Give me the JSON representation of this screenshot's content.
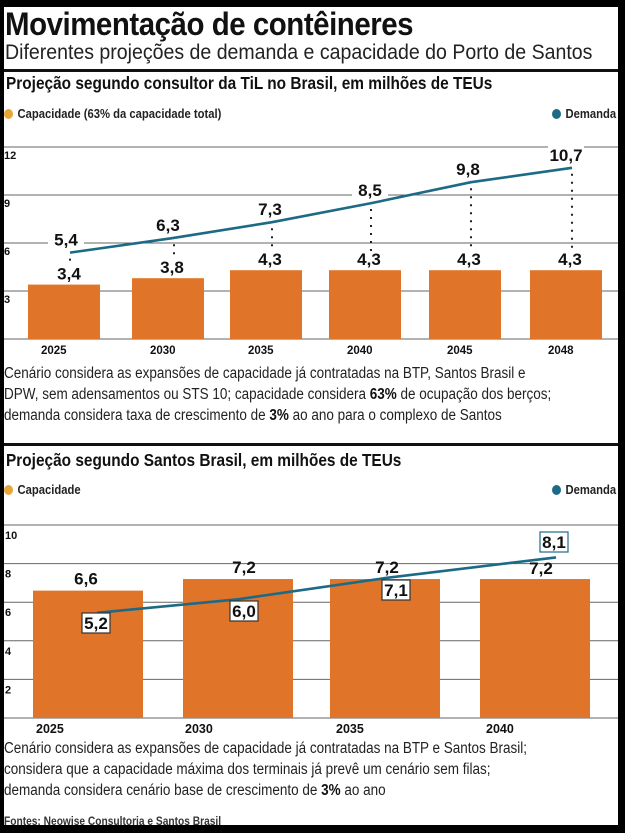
{
  "header": {
    "title": "Movimentação de contêineres",
    "subtitle": "Diferentes projeções de demanda e capacidade do Porto de Santos"
  },
  "colors": {
    "capacity_bar": "#E07428",
    "capacity_legend": "#E9A43A",
    "demand_line": "#1D6A86",
    "grid": "#555555"
  },
  "section1": {
    "title": "Projeção segundo consultor da TiL no Brasil, em milhões de TEUs",
    "legend_capacity": "Capacidade (63% da capacidade total)",
    "legend_demand": "Demanda",
    "note_lines": [
      [
        {
          "t": "Cenário considera as expansões de capacidade já contratadas na BTP, Santos Brasil e"
        }
      ],
      [
        {
          "t": "DPW, sem adensamentos ou STS 10; capacidade considera "
        },
        {
          "t": "63%",
          "b": true
        },
        {
          "t": " de ocupação dos berços;"
        }
      ],
      [
        {
          "t": "demanda considera taxa de crescimento de "
        },
        {
          "t": "3%",
          "b": true
        },
        {
          "t": " ao ano para o complexo de Santos"
        }
      ]
    ]
  },
  "section2": {
    "title": "Projeção segundo Santos Brasil, em milhões de TEUs",
    "legend_capacity": "Capacidade",
    "legend_demand": "Demanda",
    "note_lines": [
      [
        {
          "t": "Cenário considera as expansões de capacidade já contratadas na BTP e Santos Brasil;"
        }
      ],
      [
        {
          "t": "considera que a capacidade máxima dos terminais já prevê um cenário sem filas;"
        }
      ],
      [
        {
          "t": "demanda considera cenário base de crescimento de "
        },
        {
          "t": "3%",
          "b": true
        },
        {
          "t": " ao ano"
        }
      ]
    ]
  },
  "source": "Fontes: Neowise Consultoria e Santos Brasil",
  "chart_data": [
    {
      "type": "bar",
      "title": "Projeção segundo consultor da TiL no Brasil, em milhões de TEUs",
      "categories": [
        "2025",
        "2030",
        "2035",
        "2040",
        "2045",
        "2048"
      ],
      "series": [
        {
          "name": "Capacidade (63% da capacidade total)",
          "type": "bar",
          "values": [
            3.4,
            3.8,
            4.3,
            4.3,
            4.3,
            4.3
          ],
          "labels": [
            "3,4",
            "3,8",
            "4,3",
            "4,3",
            "4,3",
            "4,3"
          ]
        },
        {
          "name": "Demanda",
          "type": "line",
          "values": [
            5.4,
            6.3,
            7.3,
            8.5,
            9.8,
            10.7
          ],
          "labels": [
            "5,4",
            "6,3",
            "7,3",
            "8,5",
            "9,8",
            "10,7"
          ]
        }
      ],
      "yticks": [
        3,
        6,
        9,
        12
      ],
      "ylim": [
        0,
        12
      ],
      "xlabel": "",
      "ylabel": "",
      "grid": true,
      "legend": "top"
    },
    {
      "type": "bar",
      "title": "Projeção segundo Santos Brasil, em milhões de TEUs",
      "categories": [
        "2025",
        "2030",
        "2035",
        "2040"
      ],
      "series": [
        {
          "name": "Capacidade",
          "type": "bar",
          "values": [
            6.6,
            7.2,
            7.2,
            7.2
          ],
          "labels": [
            "6,6",
            "7,2",
            "7,2",
            "7,2"
          ]
        },
        {
          "name": "Demanda",
          "type": "line",
          "values": [
            5.2,
            6.0,
            7.1,
            8.1
          ],
          "labels": [
            "5,2",
            "6,0",
            "7,1",
            "8,1"
          ]
        }
      ],
      "yticks": [
        2,
        4,
        6,
        8,
        10
      ],
      "ylim": [
        0,
        10
      ],
      "xlabel": "",
      "ylabel": "",
      "grid": true,
      "legend": "top"
    }
  ]
}
